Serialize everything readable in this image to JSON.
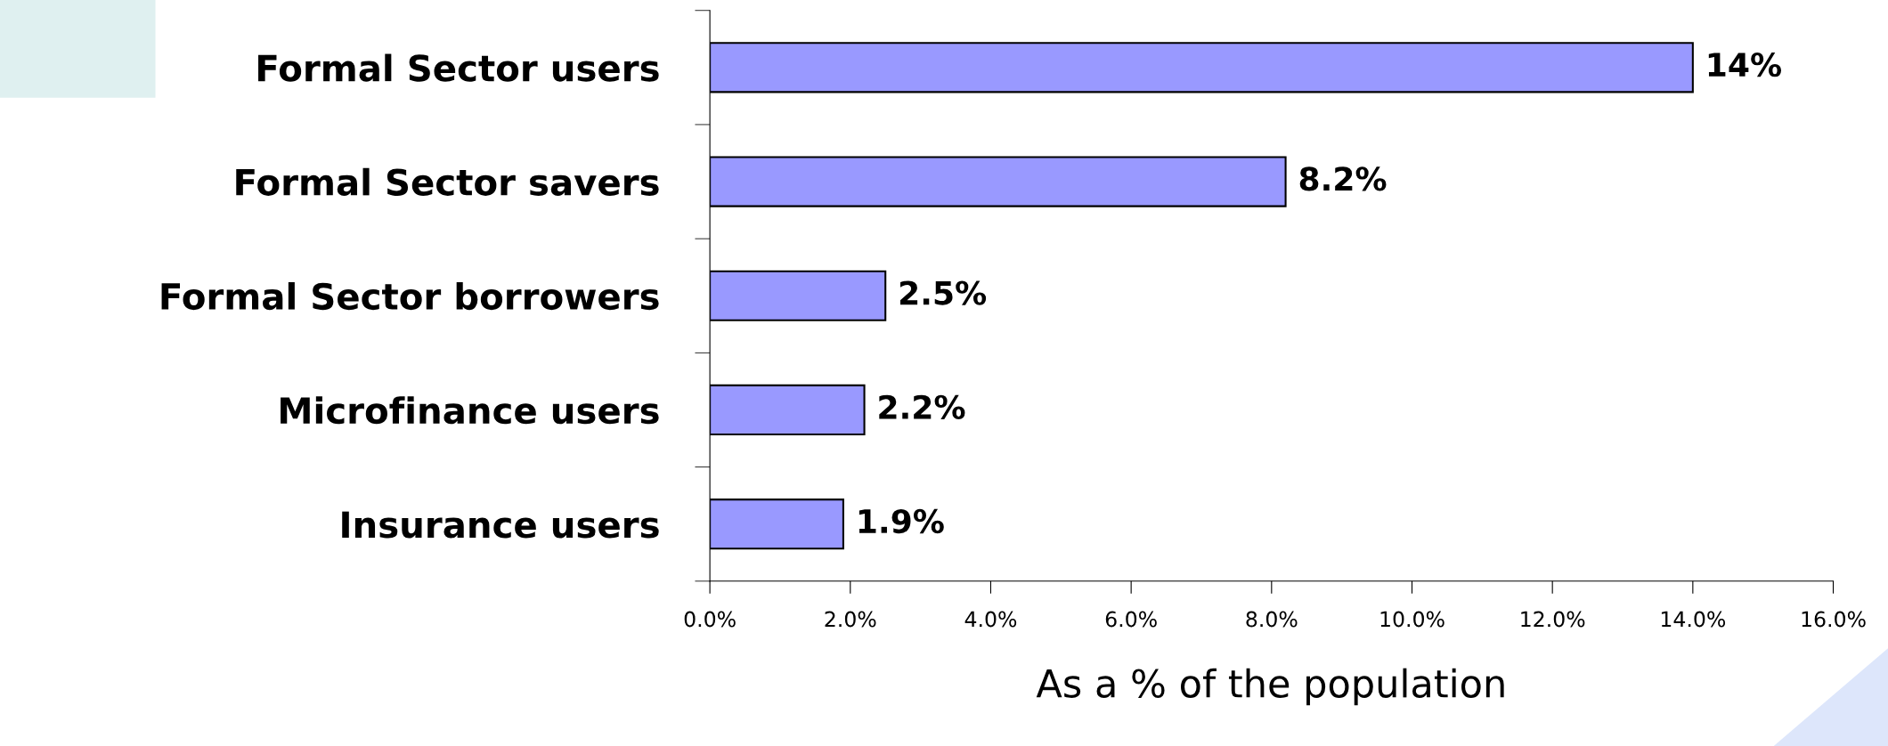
{
  "chart_data": {
    "type": "bar",
    "orientation": "horizontal",
    "xlabel": "As a % of the population",
    "categories": [
      "Formal Sector users",
      "Formal Sector savers",
      "Formal Sector borrowers",
      "Microfinance users",
      "Insurance users"
    ],
    "values": [
      14,
      8.2,
      2.5,
      2.2,
      1.9
    ],
    "value_labels": [
      "14%",
      "8.2%",
      "2.5%",
      "2.2%",
      "1.9%"
    ],
    "color": "#9999ff",
    "xlim": [
      0,
      16
    ],
    "xticks": [
      {
        "value": 0,
        "label": "0.0%"
      },
      {
        "value": 2,
        "label": "2.0%"
      },
      {
        "value": 4,
        "label": "4.0%"
      },
      {
        "value": 6,
        "label": "6.0%"
      },
      {
        "value": 8,
        "label": "8.0%"
      },
      {
        "value": 10,
        "label": "10.0%"
      },
      {
        "value": 12,
        "label": "12.0%"
      },
      {
        "value": 14,
        "label": "14.0%"
      },
      {
        "value": 16,
        "label": "16.0%"
      }
    ],
    "grid": false,
    "legend": false
  }
}
